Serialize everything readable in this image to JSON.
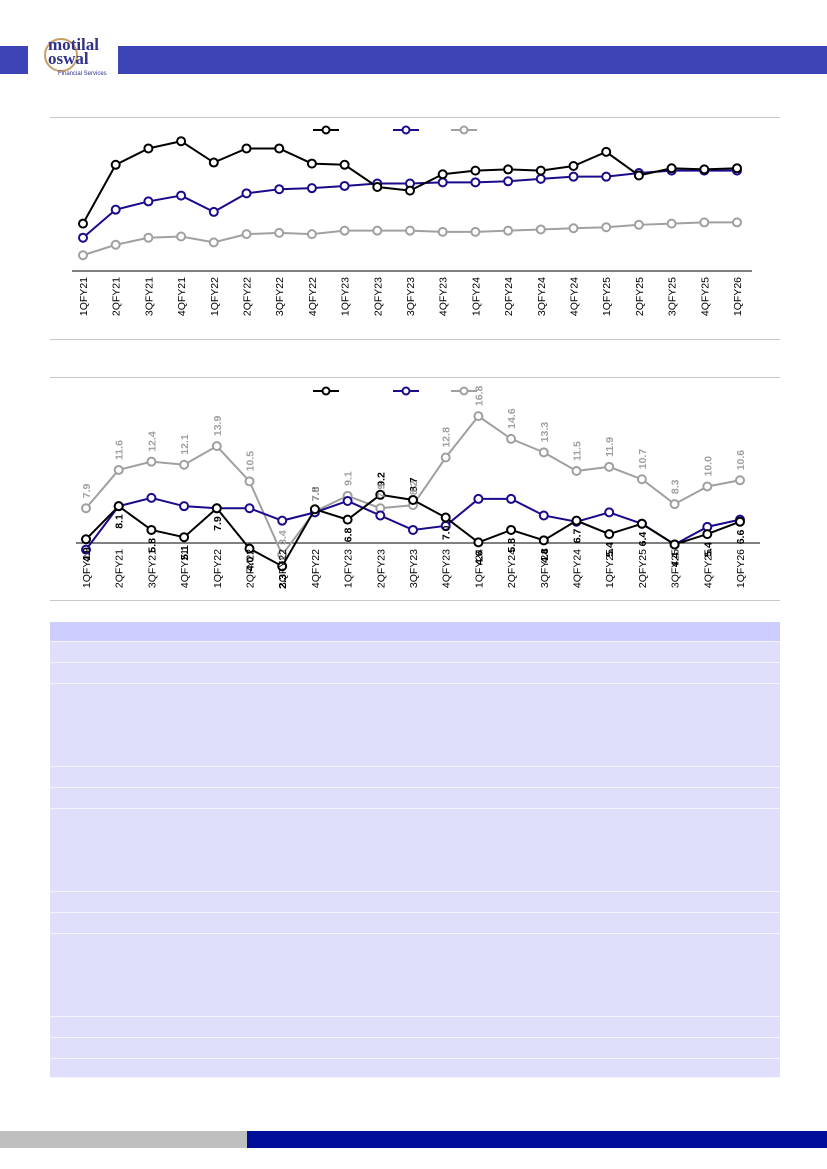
{
  "brand": {
    "logo_top": "motilal",
    "logo_bottom": "oswal",
    "logo_sub": "Financial Services",
    "colors": {
      "header": "#3d44b5",
      "footer": "#000f99",
      "series1": "#000000",
      "series2": "#1a0a8c",
      "series3": "#a0a0a0"
    }
  },
  "chart_data": [
    {
      "type": "line",
      "title": "",
      "categories": [
        "1QFY21",
        "2QFY21",
        "3QFY21",
        "4QFY21",
        "1QFY22",
        "2QFY22",
        "3QFY22",
        "4QFY22",
        "1QFY23",
        "2QFY23",
        "3QFY23",
        "4QFY23",
        "1QFY24",
        "2QFY24",
        "3QFY24",
        "4QFY24",
        "1QFY25",
        "2QFY25",
        "3QFY25",
        "4QFY25",
        "1QFY26"
      ],
      "series": [
        {
          "values": [
            38.6,
            72.8,
            82.3,
            86.5,
            74.1,
            82.3,
            82.3,
            73.5,
            72.8,
            59.9,
            57.8,
            67.3,
            69.4,
            70.1,
            69.4,
            72.1,
            80.3,
            66.6,
            70.8,
            70.1,
            70.8
          ]
        },
        {
          "values": [
            30.4,
            46.7,
            51.5,
            54.9,
            45.4,
            56.2,
            58.6,
            59.2,
            60.5,
            61.9,
            61.9,
            62.6,
            62.6,
            63.2,
            64.6,
            65.9,
            65.9,
            68.0,
            69.4,
            69.4,
            69.4
          ]
        },
        {
          "values": [
            20.2,
            26.3,
            30.4,
            31.1,
            27.7,
            32.5,
            33.2,
            32.5,
            34.5,
            34.5,
            34.5,
            33.8,
            33.8,
            34.5,
            35.2,
            35.9,
            36.5,
            37.9,
            38.6,
            39.3,
            39.3
          ]
        }
      ],
      "ylim": [
        0,
        100
      ],
      "legend": "top"
    },
    {
      "type": "line",
      "title": "",
      "categories": [
        "1QFY21",
        "2QFY21",
        "3QFY21",
        "4QFY21",
        "1QFY22",
        "2QFY22",
        "3QFY22",
        "4QFY22",
        "1QFY23",
        "2QFY23",
        "3QFY23",
        "4QFY23",
        "1QFY24",
        "2QFY24",
        "3QFY24",
        "4QFY24",
        "1QFY25",
        "2QFY25",
        "3QFY25",
        "4QFY25",
        "1QFY26"
      ],
      "series": [
        {
          "values": [
            4.9,
            8.1,
            5.8,
            5.1,
            7.9,
            4.0,
            2.3,
            7.8,
            6.8,
            9.2,
            8.7,
            7.0,
            4.6,
            5.8,
            4.8,
            6.7,
            5.4,
            6.4,
            4.4,
            5.4,
            6.6
          ],
          "labels": [
            "4.9",
            "8.1",
            "5.8",
            "5.1",
            "7.9",
            "4.0",
            "2.3",
            "7.8",
            "6.8",
            "9.2",
            "8.7",
            "7.0",
            "4.6",
            "5.8",
            "4.8",
            "6.7",
            "5.4",
            "6.4",
            "4.4",
            "5.4",
            "6.6"
          ]
        },
        {
          "values": [
            3.9,
            8.1,
            8.9,
            8.1,
            7.9,
            7.9,
            6.7,
            7.5,
            8.6,
            7.2,
            5.8,
            6.2,
            8.8,
            8.8,
            7.2,
            6.6,
            7.5,
            6.4,
            4.4,
            6.1,
            6.8
          ]
        },
        {
          "values": [
            7.9,
            11.6,
            12.4,
            12.1,
            13.9,
            10.5,
            3.4,
            7.6,
            9.1,
            7.9,
            8.2,
            12.8,
            16.8,
            14.6,
            13.3,
            11.5,
            11.9,
            10.7,
            8.3,
            10.0,
            10.6
          ],
          "labels": [
            "7.9",
            "11.6",
            "12.4",
            "12.1",
            "13.9",
            "10.5",
            "3.4",
            "7.6",
            "9.1",
            "7.9",
            "8.2",
            "12.8",
            "16.8",
            "14.6",
            "13.3",
            "11.5",
            "11.9",
            "10.7",
            "8.3",
            "10.0",
            "10.6"
          ]
        }
      ],
      "ylim": [
        0,
        20
      ],
      "legend": "top"
    }
  ],
  "table": {
    "rows": 23
  }
}
